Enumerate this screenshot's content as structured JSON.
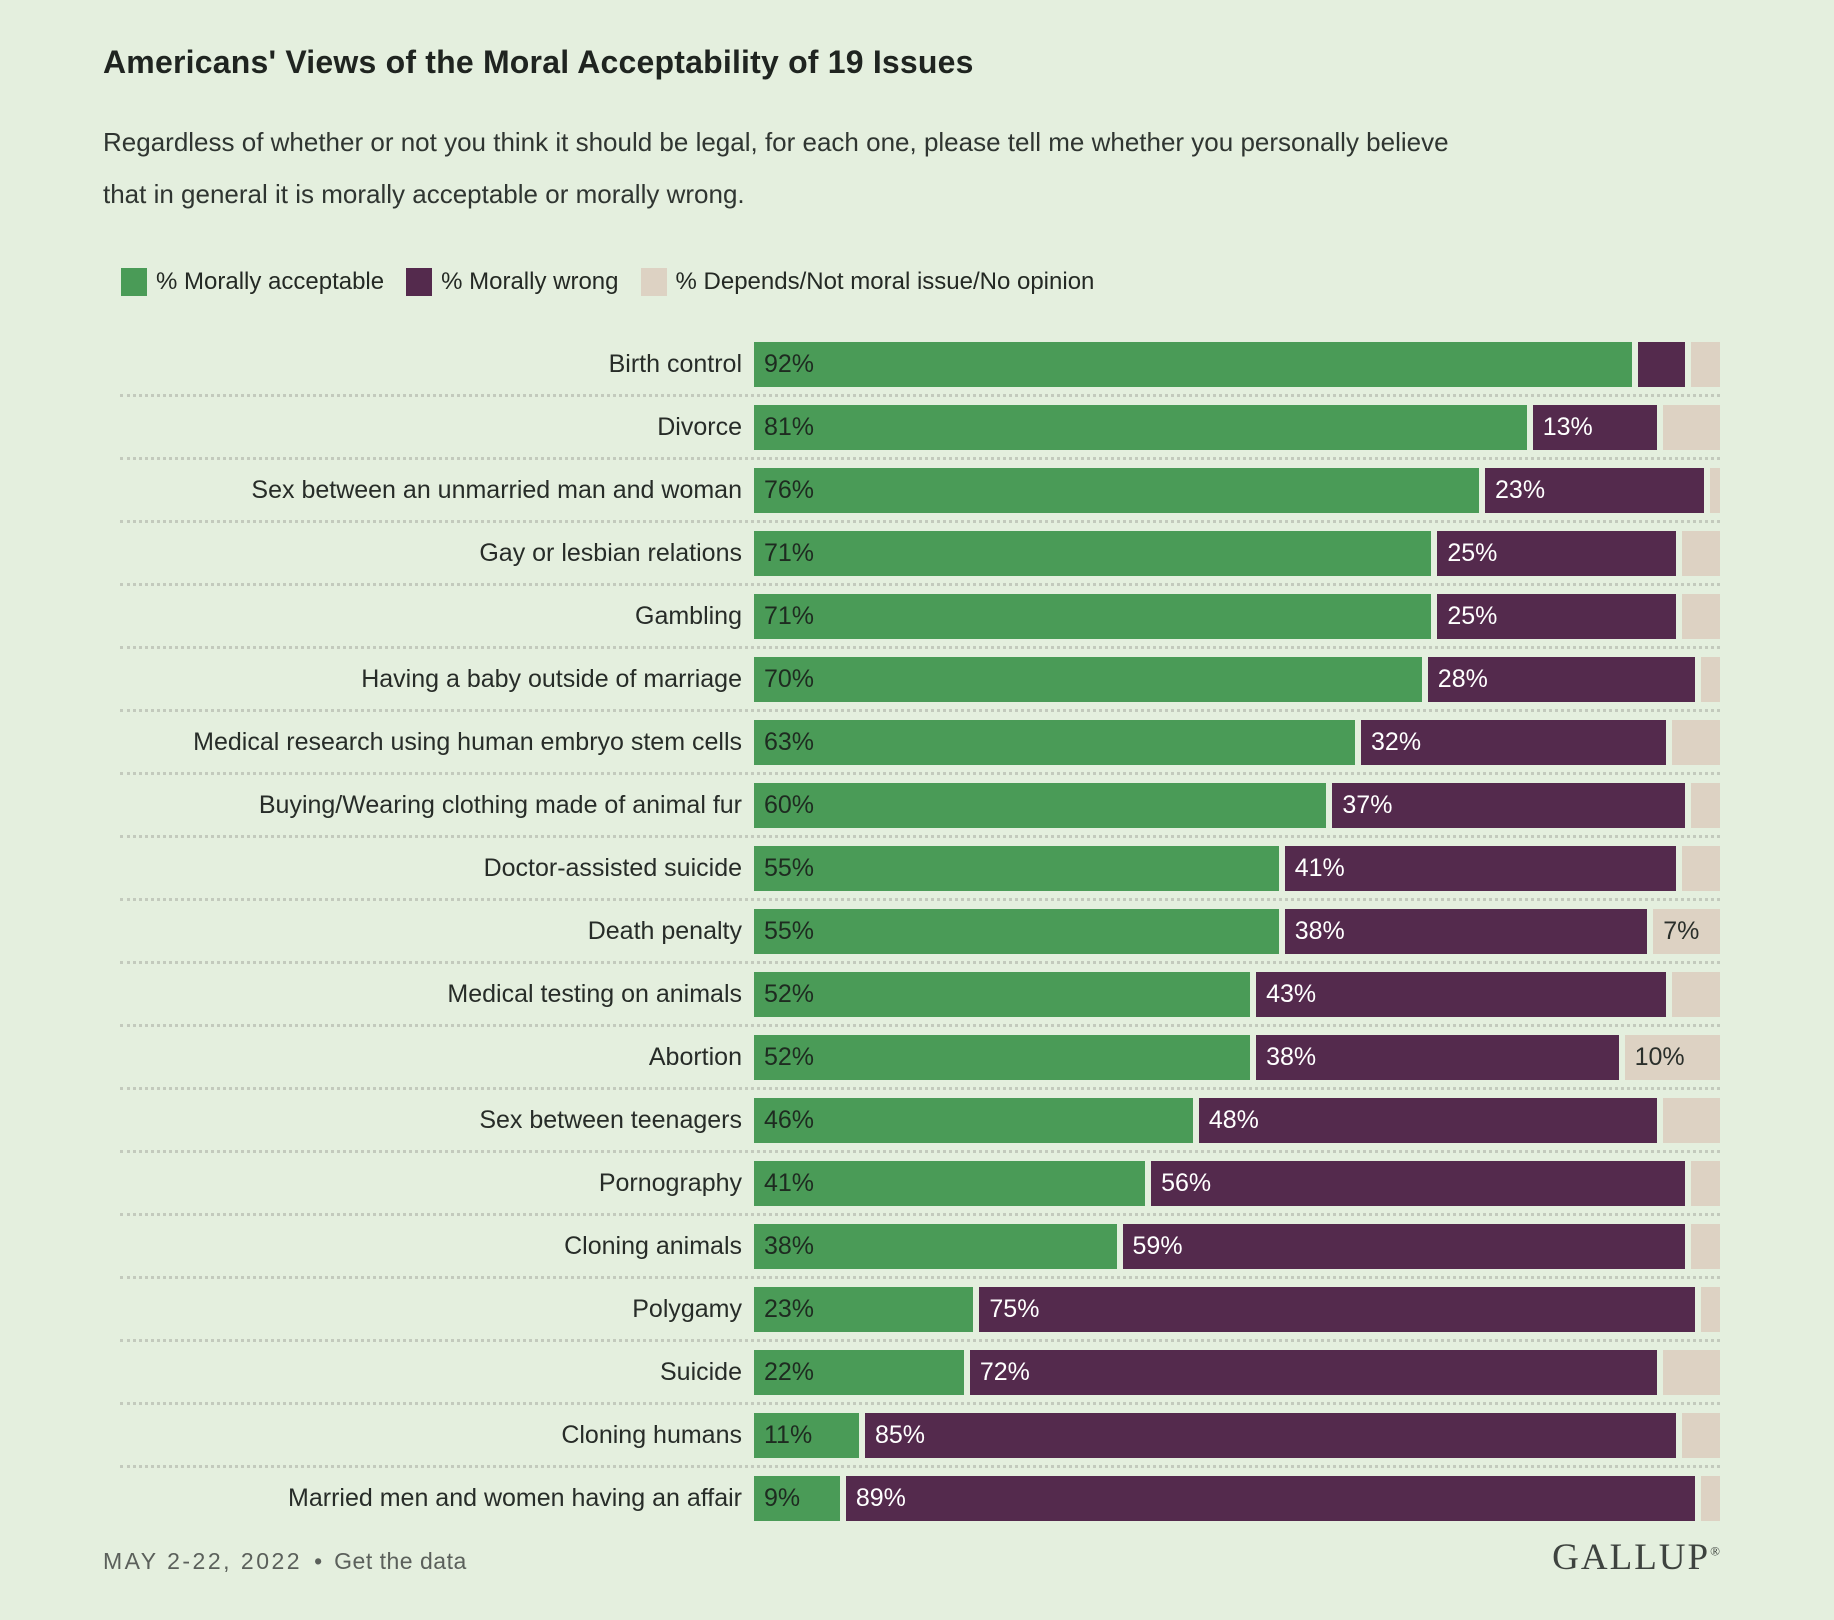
{
  "page": {
    "title": "Americans' Views of the Moral Acceptability of 19 Issues",
    "subtitle": "Regardless of whether or not you think it should be legal, for each one, please tell me whether you personally believe that in general it is morally acceptable or morally wrong.",
    "footer": {
      "date": "MAY 2-22, 2022",
      "separator": "•",
      "link": "Get the data",
      "brand": "GALLUP",
      "registered": "®"
    }
  },
  "legend": [
    {
      "label": "% Morally acceptable",
      "color": "#4a9b57"
    },
    {
      "label": "% Morally wrong",
      "color": "#542a4d"
    },
    {
      "label": "% Depends/Not moral issue/No opinion",
      "color": "#ddd2c3"
    }
  ],
  "colors": {
    "background": "#e4efde",
    "acceptable": "#4a9b57",
    "wrong": "#542a4d",
    "depends": "#ddd2c3",
    "separator_dots": "#c3cabd"
  },
  "chart_data": {
    "type": "bar",
    "orientation": "horizontal",
    "stacked": true,
    "unit": "%",
    "x_range_pct": [
      0,
      100
    ],
    "grid": "dotted-row-separators",
    "legend_position": "top-left",
    "categories": [
      "Birth control",
      "Divorce",
      "Sex between an unmarried man and woman",
      "Gay or lesbian relations",
      "Gambling",
      "Having a baby outside of marriage",
      "Medical research using human embryo stem cells",
      "Buying/Wearing clothing made of animal fur",
      "Doctor-assisted suicide",
      "Death penalty",
      "Medical testing on animals",
      "Abortion",
      "Sex between teenagers",
      "Pornography",
      "Cloning animals",
      "Polygamy",
      "Suicide",
      "Cloning humans",
      "Married men and women having an affair"
    ],
    "series": [
      {
        "key": "acceptable",
        "name": "% Morally acceptable",
        "color": "#4a9b57",
        "values": [
          92,
          81,
          76,
          71,
          71,
          70,
          63,
          60,
          55,
          55,
          52,
          52,
          46,
          41,
          38,
          23,
          22,
          11,
          9
        ],
        "labels_visible": [
          true,
          true,
          true,
          true,
          true,
          true,
          true,
          true,
          true,
          true,
          true,
          true,
          true,
          true,
          true,
          true,
          true,
          true,
          true
        ]
      },
      {
        "key": "wrong",
        "name": "% Morally wrong",
        "color": "#542a4d",
        "values": [
          5,
          13,
          23,
          25,
          25,
          28,
          32,
          37,
          41,
          38,
          43,
          38,
          48,
          56,
          59,
          75,
          72,
          85,
          89
        ],
        "labels_visible": [
          false,
          true,
          true,
          true,
          true,
          true,
          true,
          true,
          true,
          true,
          true,
          true,
          true,
          true,
          true,
          true,
          true,
          true,
          true
        ]
      },
      {
        "key": "depends",
        "name": "% Depends/Not moral issue/No opinion",
        "color": "#ddd2c3",
        "values": [
          3,
          6,
          1,
          4,
          4,
          2,
          5,
          3,
          4,
          7,
          5,
          10,
          6,
          3,
          3,
          2,
          6,
          4,
          2
        ],
        "labels_visible": [
          false,
          false,
          false,
          false,
          false,
          false,
          false,
          false,
          false,
          true,
          false,
          true,
          false,
          false,
          false,
          false,
          false,
          false,
          false
        ]
      }
    ]
  }
}
